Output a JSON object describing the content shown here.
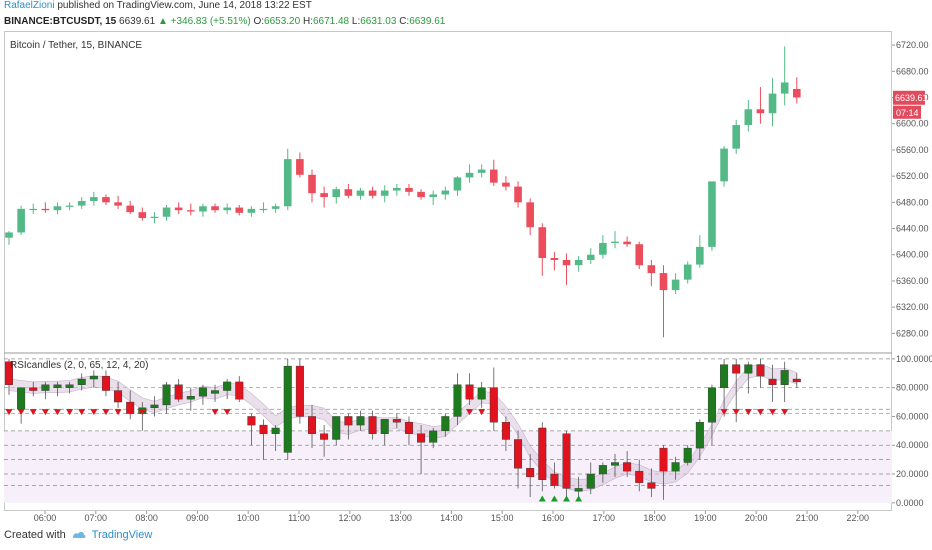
{
  "header": {
    "author": "RafaelZioni",
    "published": "published on TradingView.com, June 14, 2018 13:22 EST"
  },
  "ohlc": {
    "symbol": "BINANCE:BTCUSDT, 15",
    "last": "6639.61",
    "change": "▲ +346.83 (+5.51%)",
    "o_label": "O:",
    "o": "6653.20",
    "h_label": "H:",
    "h": "6671.48",
    "l_label": "L:",
    "l": "6631.03",
    "c_label": "C:",
    "c": "6639.61"
  },
  "footer": {
    "created": "Created with",
    "brand": "TradingView"
  },
  "colors": {
    "up": "#53b987",
    "down": "#eb4d5c",
    "rsi_up": "#1e7a1e",
    "rsi_down": "#e0131f",
    "band": "#d8c6dc",
    "grid": "#e6e6e6"
  },
  "chart_data": [
    {
      "type": "candlestick",
      "title": "Bitcoin / Tether, 15, BINANCE",
      "ylim": [
        6250,
        6740
      ],
      "yticks": [
        "6720.00",
        "6680.00",
        "6640.00",
        "6600.00",
        "6560.00",
        "6520.00",
        "6480.00",
        "6440.00",
        "6400.00",
        "6360.00",
        "6320.00",
        "6280.00"
      ],
      "last_price_label": "6639.61",
      "countdown_label": "07:14",
      "xticks": [
        "06:00",
        "07:00",
        "08:00",
        "09:00",
        "10:00",
        "11:00",
        "12:00",
        "13:00",
        "14:00",
        "15:00",
        "16:00",
        "17:00",
        "18:00",
        "19:00",
        "20:00",
        "21:00",
        "22:00"
      ],
      "candles": [
        [
          6426,
          6436,
          6415,
          6434
        ],
        [
          6434,
          6475,
          6430,
          6470
        ],
        [
          6470,
          6478,
          6462,
          6470
        ],
        [
          6470,
          6480,
          6464,
          6468
        ],
        [
          6468,
          6480,
          6462,
          6474
        ],
        [
          6474,
          6480,
          6468,
          6475
        ],
        [
          6475,
          6488,
          6470,
          6482
        ],
        [
          6482,
          6496,
          6475,
          6488
        ],
        [
          6488,
          6492,
          6476,
          6480
        ],
        [
          6480,
          6490,
          6470,
          6475
        ],
        [
          6475,
          6482,
          6462,
          6465
        ],
        [
          6465,
          6472,
          6452,
          6456
        ],
        [
          6456,
          6465,
          6448,
          6458
        ],
        [
          6458,
          6476,
          6452,
          6472
        ],
        [
          6472,
          6480,
          6462,
          6468
        ],
        [
          6468,
          6478,
          6460,
          6466
        ],
        [
          6466,
          6478,
          6458,
          6474
        ],
        [
          6474,
          6478,
          6464,
          6468
        ],
        [
          6468,
          6478,
          6462,
          6472
        ],
        [
          6472,
          6476,
          6460,
          6464
        ],
        [
          6464,
          6474,
          6458,
          6470
        ],
        [
          6470,
          6480,
          6464,
          6470
        ],
        [
          6470,
          6478,
          6464,
          6474
        ],
        [
          6474,
          6562,
          6468,
          6546
        ],
        [
          6546,
          6556,
          6518,
          6522
        ],
        [
          6522,
          6530,
          6480,
          6494
        ],
        [
          6494,
          6504,
          6472,
          6488
        ],
        [
          6488,
          6504,
          6478,
          6500
        ],
        [
          6500,
          6508,
          6486,
          6490
        ],
        [
          6490,
          6502,
          6484,
          6498
        ],
        [
          6498,
          6504,
          6486,
          6490
        ],
        [
          6490,
          6506,
          6480,
          6498
        ],
        [
          6498,
          6508,
          6490,
          6502
        ],
        [
          6502,
          6508,
          6490,
          6496
        ],
        [
          6496,
          6500,
          6484,
          6488
        ],
        [
          6488,
          6498,
          6476,
          6492
        ],
        [
          6492,
          6504,
          6484,
          6498
        ],
        [
          6498,
          6520,
          6490,
          6518
        ],
        [
          6518,
          6538,
          6510,
          6525
        ],
        [
          6525,
          6538,
          6518,
          6530
        ],
        [
          6530,
          6545,
          6505,
          6510
        ],
        [
          6510,
          6520,
          6498,
          6504
        ],
        [
          6504,
          6512,
          6472,
          6480
        ],
        [
          6480,
          6486,
          6430,
          6442
        ],
        [
          6442,
          6448,
          6368,
          6395
        ],
        [
          6395,
          6404,
          6376,
          6392
        ],
        [
          6392,
          6402,
          6354,
          6384
        ],
        [
          6384,
          6398,
          6374,
          6392
        ],
        [
          6392,
          6410,
          6386,
          6400
        ],
        [
          6400,
          6430,
          6394,
          6418
        ],
        [
          6418,
          6436,
          6410,
          6420
        ],
        [
          6420,
          6428,
          6412,
          6416
        ],
        [
          6416,
          6420,
          6378,
          6384
        ],
        [
          6384,
          6392,
          6352,
          6372
        ],
        [
          6372,
          6384,
          6274,
          6346
        ],
        [
          6346,
          6372,
          6340,
          6362
        ],
        [
          6362,
          6390,
          6356,
          6385
        ],
        [
          6385,
          6430,
          6380,
          6412
        ],
        [
          6412,
          6510,
          6406,
          6512
        ],
        [
          6512,
          6566,
          6504,
          6562
        ],
        [
          6562,
          6606,
          6554,
          6598
        ],
        [
          6598,
          6636,
          6588,
          6622
        ],
        [
          6622,
          6656,
          6600,
          6616
        ],
        [
          6616,
          6670,
          6596,
          6646
        ],
        [
          6646,
          6718,
          6628,
          6663
        ],
        [
          6653,
          6671,
          6631,
          6640
        ]
      ]
    },
    {
      "type": "candlestick",
      "title": "RSIcandles (2, 0, 65, 12, 4, 20)",
      "ylim": [
        -5,
        102
      ],
      "yticks": [
        "100.0000",
        "80.0000",
        "60.0000",
        "40.0000",
        "20.0000",
        "0.0000"
      ],
      "levels": [
        100,
        80,
        65,
        62,
        50,
        40,
        30,
        20,
        12
      ],
      "candles": [
        [
          98,
          100,
          75,
          82
        ],
        [
          65,
          80,
          55,
          80
        ],
        [
          80,
          84,
          74,
          78
        ],
        [
          78,
          84,
          72,
          82
        ],
        [
          80,
          84,
          74,
          82
        ],
        [
          80,
          84,
          76,
          82
        ],
        [
          82,
          90,
          78,
          86
        ],
        [
          86,
          92,
          80,
          88
        ],
        [
          88,
          92,
          74,
          78
        ],
        [
          78,
          84,
          66,
          70
        ],
        [
          70,
          78,
          58,
          62
        ],
        [
          62,
          70,
          50,
          66
        ],
        [
          66,
          74,
          60,
          68
        ],
        [
          68,
          84,
          62,
          82
        ],
        [
          82,
          86,
          70,
          72
        ],
        [
          72,
          80,
          64,
          74
        ],
        [
          74,
          82,
          68,
          80
        ],
        [
          76,
          82,
          70,
          78
        ],
        [
          78,
          86,
          72,
          84
        ],
        [
          84,
          88,
          70,
          72
        ],
        [
          60,
          62,
          40,
          54
        ],
        [
          54,
          58,
          30,
          48
        ],
        [
          48,
          54,
          36,
          52
        ],
        [
          35,
          100,
          30,
          95
        ],
        [
          95,
          100,
          55,
          60
        ],
        [
          60,
          68,
          38,
          48
        ],
        [
          48,
          54,
          32,
          44
        ],
        [
          44,
          60,
          40,
          60
        ],
        [
          60,
          62,
          44,
          54
        ],
        [
          54,
          64,
          50,
          60
        ],
        [
          60,
          64,
          44,
          48
        ],
        [
          48,
          58,
          40,
          58
        ],
        [
          58,
          62,
          52,
          56
        ],
        [
          56,
          60,
          40,
          48
        ],
        [
          48,
          54,
          20,
          42
        ],
        [
          42,
          52,
          38,
          50
        ],
        [
          50,
          62,
          46,
          60
        ],
        [
          60,
          90,
          54,
          82
        ],
        [
          82,
          90,
          68,
          72
        ],
        [
          72,
          84,
          66,
          80
        ],
        [
          80,
          94,
          50,
          56
        ],
        [
          56,
          60,
          36,
          44
        ],
        [
          44,
          50,
          10,
          24
        ],
        [
          24,
          34,
          4,
          18
        ],
        [
          52,
          56,
          8,
          16
        ],
        [
          20,
          28,
          10,
          12
        ],
        [
          48,
          50,
          2,
          10
        ],
        [
          8,
          18,
          4,
          10
        ],
        [
          10,
          28,
          6,
          20
        ],
        [
          20,
          28,
          14,
          26
        ],
        [
          26,
          34,
          18,
          28
        ],
        [
          28,
          36,
          18,
          22
        ],
        [
          22,
          30,
          8,
          14
        ],
        [
          14,
          24,
          4,
          10
        ],
        [
          38,
          40,
          2,
          22
        ],
        [
          22,
          32,
          16,
          28
        ],
        [
          28,
          40,
          26,
          38
        ],
        [
          38,
          58,
          30,
          56
        ],
        [
          56,
          82,
          40,
          80
        ],
        [
          80,
          100,
          60,
          96
        ],
        [
          96,
          100,
          56,
          90
        ],
        [
          90,
          98,
          76,
          96
        ],
        [
          96,
          100,
          80,
          88
        ],
        [
          86,
          96,
          70,
          82
        ],
        [
          82,
          98,
          70,
          92
        ],
        [
          86,
          90,
          80,
          84
        ]
      ],
      "up_markers": [
        44,
        45,
        46,
        47
      ],
      "down_markers": [
        0,
        1,
        2,
        3,
        4,
        5,
        6,
        7,
        8,
        9,
        10,
        11,
        17,
        18,
        38,
        39,
        59,
        60,
        61,
        62,
        63,
        64
      ]
    }
  ]
}
